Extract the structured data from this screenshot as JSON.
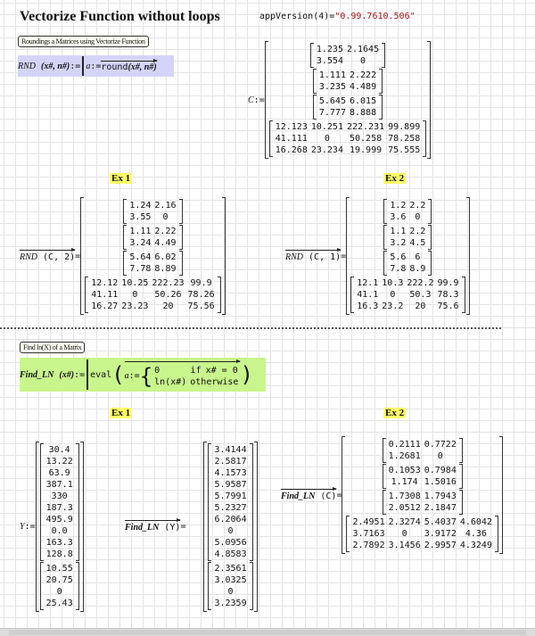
{
  "title": "Vectorize Function without loops",
  "app_version": {
    "expr": "appVersion",
    "arg": "(4)",
    "eq": "=",
    "value": "\"0.99.7610.506\""
  },
  "section1": {
    "label": "Roundings a Matrices using Vectorize Function",
    "def_name": "RND",
    "def_args": "(x#, n#)",
    "assign": ":=",
    "body_var": "a",
    "body_assign": ":=",
    "body_func": "round",
    "body_args": "(x#, n#)",
    "c_name": "C",
    "c_assign": ":=",
    "ex1_label": "Ex 1",
    "ex2_label": "Ex 2",
    "ex1_expr": "RND",
    "ex1_args": "(C, 2)",
    "ex2_expr": "RND",
    "ex2_args": "(C, 1)",
    "eq": "="
  },
  "section2": {
    "label": "Find ln(X) of a Matrix",
    "def_name": "Find_LN",
    "def_args": "(x#)",
    "assign": ":=",
    "eval": "eval",
    "var": "a",
    "var_assign": ":=",
    "case1_val": "0",
    "case1_cond": "if",
    "case1_test": "x# = 0",
    "case2_val": "ln(x#)",
    "case2_cond": "otherwise",
    "ex1_label": "Ex 1",
    "ex2_label": "Ex 2",
    "y_name": "Y",
    "y_assign": ":=",
    "ex1_expr": "Find_LN",
    "ex1_args": "(Y)",
    "ex2_expr": "Find_LN",
    "ex2_args": "(C)",
    "eq": "="
  },
  "matrices": {
    "C": [
      [
        [
          "1.235",
          "2.1645"
        ],
        [
          "3.554",
          "0"
        ]
      ],
      [
        [
          "1.111",
          "2.222"
        ],
        [
          "3.235",
          "4.489"
        ]
      ],
      [
        [
          "5.645",
          "6.015"
        ],
        [
          "7.777",
          "8.888"
        ]
      ],
      [
        [
          "12.123",
          "10.251",
          "222.231",
          "99.899"
        ],
        [
          "41.111",
          "0",
          "50.258",
          "78.258"
        ],
        [
          "16.268",
          "23.234",
          "19.999",
          "75.555"
        ]
      ]
    ],
    "RND_C_2": [
      [
        [
          "1.24",
          "2.16"
        ],
        [
          "3.55",
          "0"
        ]
      ],
      [
        [
          "1.11",
          "2.22"
        ],
        [
          "3.24",
          "4.49"
        ]
      ],
      [
        [
          "5.64",
          "6.02"
        ],
        [
          "7.78",
          "8.89"
        ]
      ],
      [
        [
          "12.12",
          "10.25",
          "222.23",
          "99.9"
        ],
        [
          "41.11",
          "0",
          "50.26",
          "78.26"
        ],
        [
          "16.27",
          "23.23",
          "20",
          "75.56"
        ]
      ]
    ],
    "RND_C_1": [
      [
        [
          "1.2",
          "2.2"
        ],
        [
          "3.6",
          "0"
        ]
      ],
      [
        [
          "1.1",
          "2.2"
        ],
        [
          "3.2",
          "4.5"
        ]
      ],
      [
        [
          "5.6",
          "6"
        ],
        [
          "7.8",
          "8.9"
        ]
      ],
      [
        [
          "12.1",
          "10.3",
          "222.2",
          "99.9"
        ],
        [
          "41.1",
          "0",
          "50.3",
          "78.3"
        ],
        [
          "16.3",
          "23.2",
          "20",
          "75.6"
        ]
      ]
    ],
    "Y": [
      [
        [
          "30.4"
        ],
        [
          "13.22"
        ],
        [
          "63.9"
        ],
        [
          "387.1"
        ],
        [
          "330"
        ],
        [
          "187.3"
        ],
        [
          "495.9"
        ],
        [
          "0.0"
        ],
        [
          "163.3"
        ],
        [
          "128.8"
        ]
      ],
      [
        [
          "10.55"
        ],
        [
          "20.75"
        ],
        [
          "0"
        ],
        [
          "25.43"
        ]
      ]
    ],
    "LN_Y": [
      [
        [
          "3.4144"
        ],
        [
          "2.5817"
        ],
        [
          "4.1573"
        ],
        [
          "5.9587"
        ],
        [
          "5.7991"
        ],
        [
          "5.2327"
        ],
        [
          "6.2064"
        ],
        [
          "0"
        ],
        [
          "5.0956"
        ],
        [
          "4.8583"
        ]
      ],
      [
        [
          "2.3561"
        ],
        [
          "3.0325"
        ],
        [
          "0"
        ],
        [
          "3.2359"
        ]
      ]
    ],
    "LN_C": [
      [
        [
          "0.2111",
          "0.7722"
        ],
        [
          "1.2681",
          "0"
        ]
      ],
      [
        [
          "0.1053",
          "0.7984"
        ],
        [
          "1.174",
          "1.5016"
        ]
      ],
      [
        [
          "1.7308",
          "1.7943"
        ],
        [
          "2.0512",
          "2.1847"
        ]
      ],
      [
        [
          "2.4951",
          "2.3274",
          "5.4037",
          "4.6042"
        ],
        [
          "3.7163",
          "0",
          "3.9172",
          "4.36"
        ],
        [
          "2.7892",
          "3.1456",
          "2.9957",
          "4.3249"
        ]
      ]
    ]
  },
  "colors": {
    "def_bg_rnd": "#d4d4fa",
    "def_bg_ln": "#c8f58c",
    "ex_label_bg": "#ffff66",
    "string_value": "#b0141c"
  }
}
